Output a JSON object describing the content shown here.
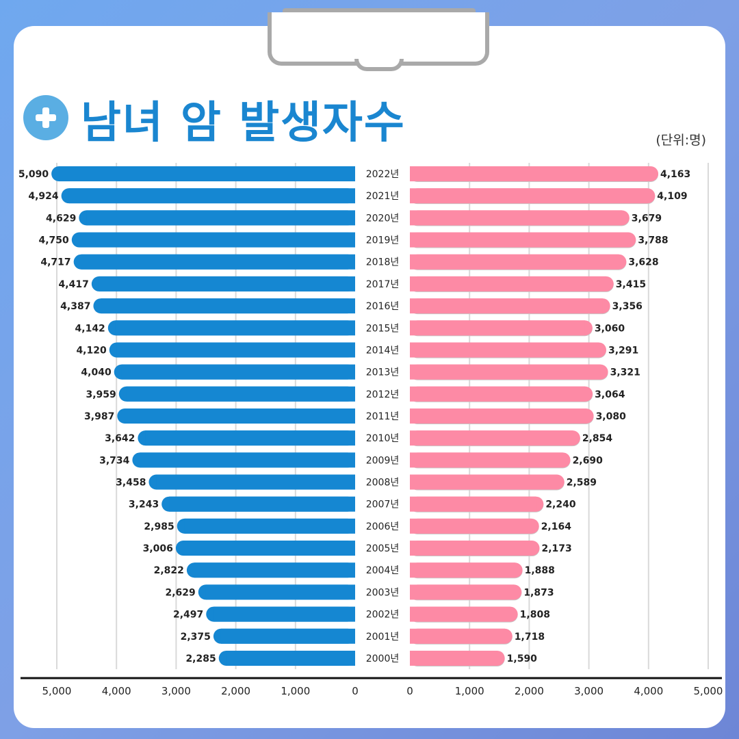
{
  "title": "남녀 암 발생자수",
  "unit": "(단위:명)",
  "colors": {
    "male": "#1587d2",
    "female": "#fd8aa5",
    "title": "#1a86d0"
  },
  "chart_data": {
    "type": "bar",
    "categories": [
      "2022년",
      "2021년",
      "2020년",
      "2019년",
      "2018년",
      "2017년",
      "2016년",
      "2015년",
      "2014년",
      "2013년",
      "2012년",
      "2011년",
      "2010년",
      "2009년",
      "2008년",
      "2007년",
      "2006년",
      "2005년",
      "2004년",
      "2003년",
      "2002년",
      "2001년",
      "2000년"
    ],
    "series": [
      {
        "values": [
          5090,
          4924,
          4629,
          4750,
          4717,
          4417,
          4387,
          4142,
          4120,
          4040,
          3959,
          3987,
          3642,
          3734,
          3458,
          3243,
          2985,
          3006,
          2822,
          2629,
          2497,
          2375,
          2285
        ]
      },
      {
        "values": [
          4163,
          4109,
          3679,
          3788,
          3628,
          3415,
          3356,
          3060,
          3291,
          3321,
          3064,
          3080,
          2854,
          2690,
          2589,
          2240,
          2164,
          2173,
          1888,
          1873,
          1808,
          1718,
          1590
        ]
      }
    ],
    "left_ticks": [
      "5,000",
      "4,000",
      "3,000",
      "2,000",
      "1,000",
      "0"
    ],
    "right_ticks": [
      "0",
      "1,000",
      "2,000",
      "3,000",
      "4,000",
      "5,000"
    ],
    "xlim": [
      0,
      5000
    ],
    "grid": true
  }
}
